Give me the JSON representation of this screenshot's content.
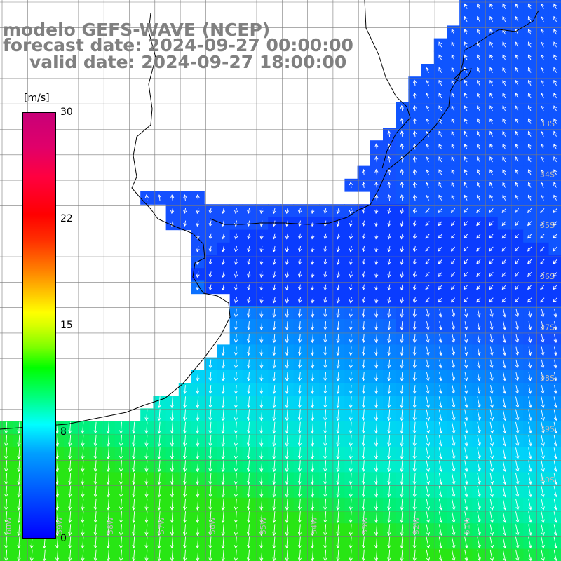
{
  "title": {
    "line1": "modelo GEFS-WAVE (NCEP)",
    "line2": "forecast date: 2024-09-27 00:00:00",
    "line3": "valid date: 2024-09-27 18:00:00"
  },
  "colorbar": {
    "unit": "[m/s]",
    "ticks": [
      "30",
      "22",
      "15",
      "8",
      "0"
    ],
    "min": 0,
    "max": 30
  },
  "latitude_labels": [
    "33S",
    "34S",
    "35S",
    "36S",
    "37S",
    "38S",
    "39S",
    "40S"
  ],
  "longitude_labels": [
    "60W",
    "59W",
    "58W",
    "57W",
    "56W",
    "55W",
    "54W",
    "53W",
    "52W",
    "51W"
  ],
  "colors": {
    "land": "#ffffff",
    "coast": "#000000",
    "grid": "#7a7a7a",
    "arrow": "#ffffff",
    "title": "#808080",
    "label": "#b8b8b8"
  }
}
